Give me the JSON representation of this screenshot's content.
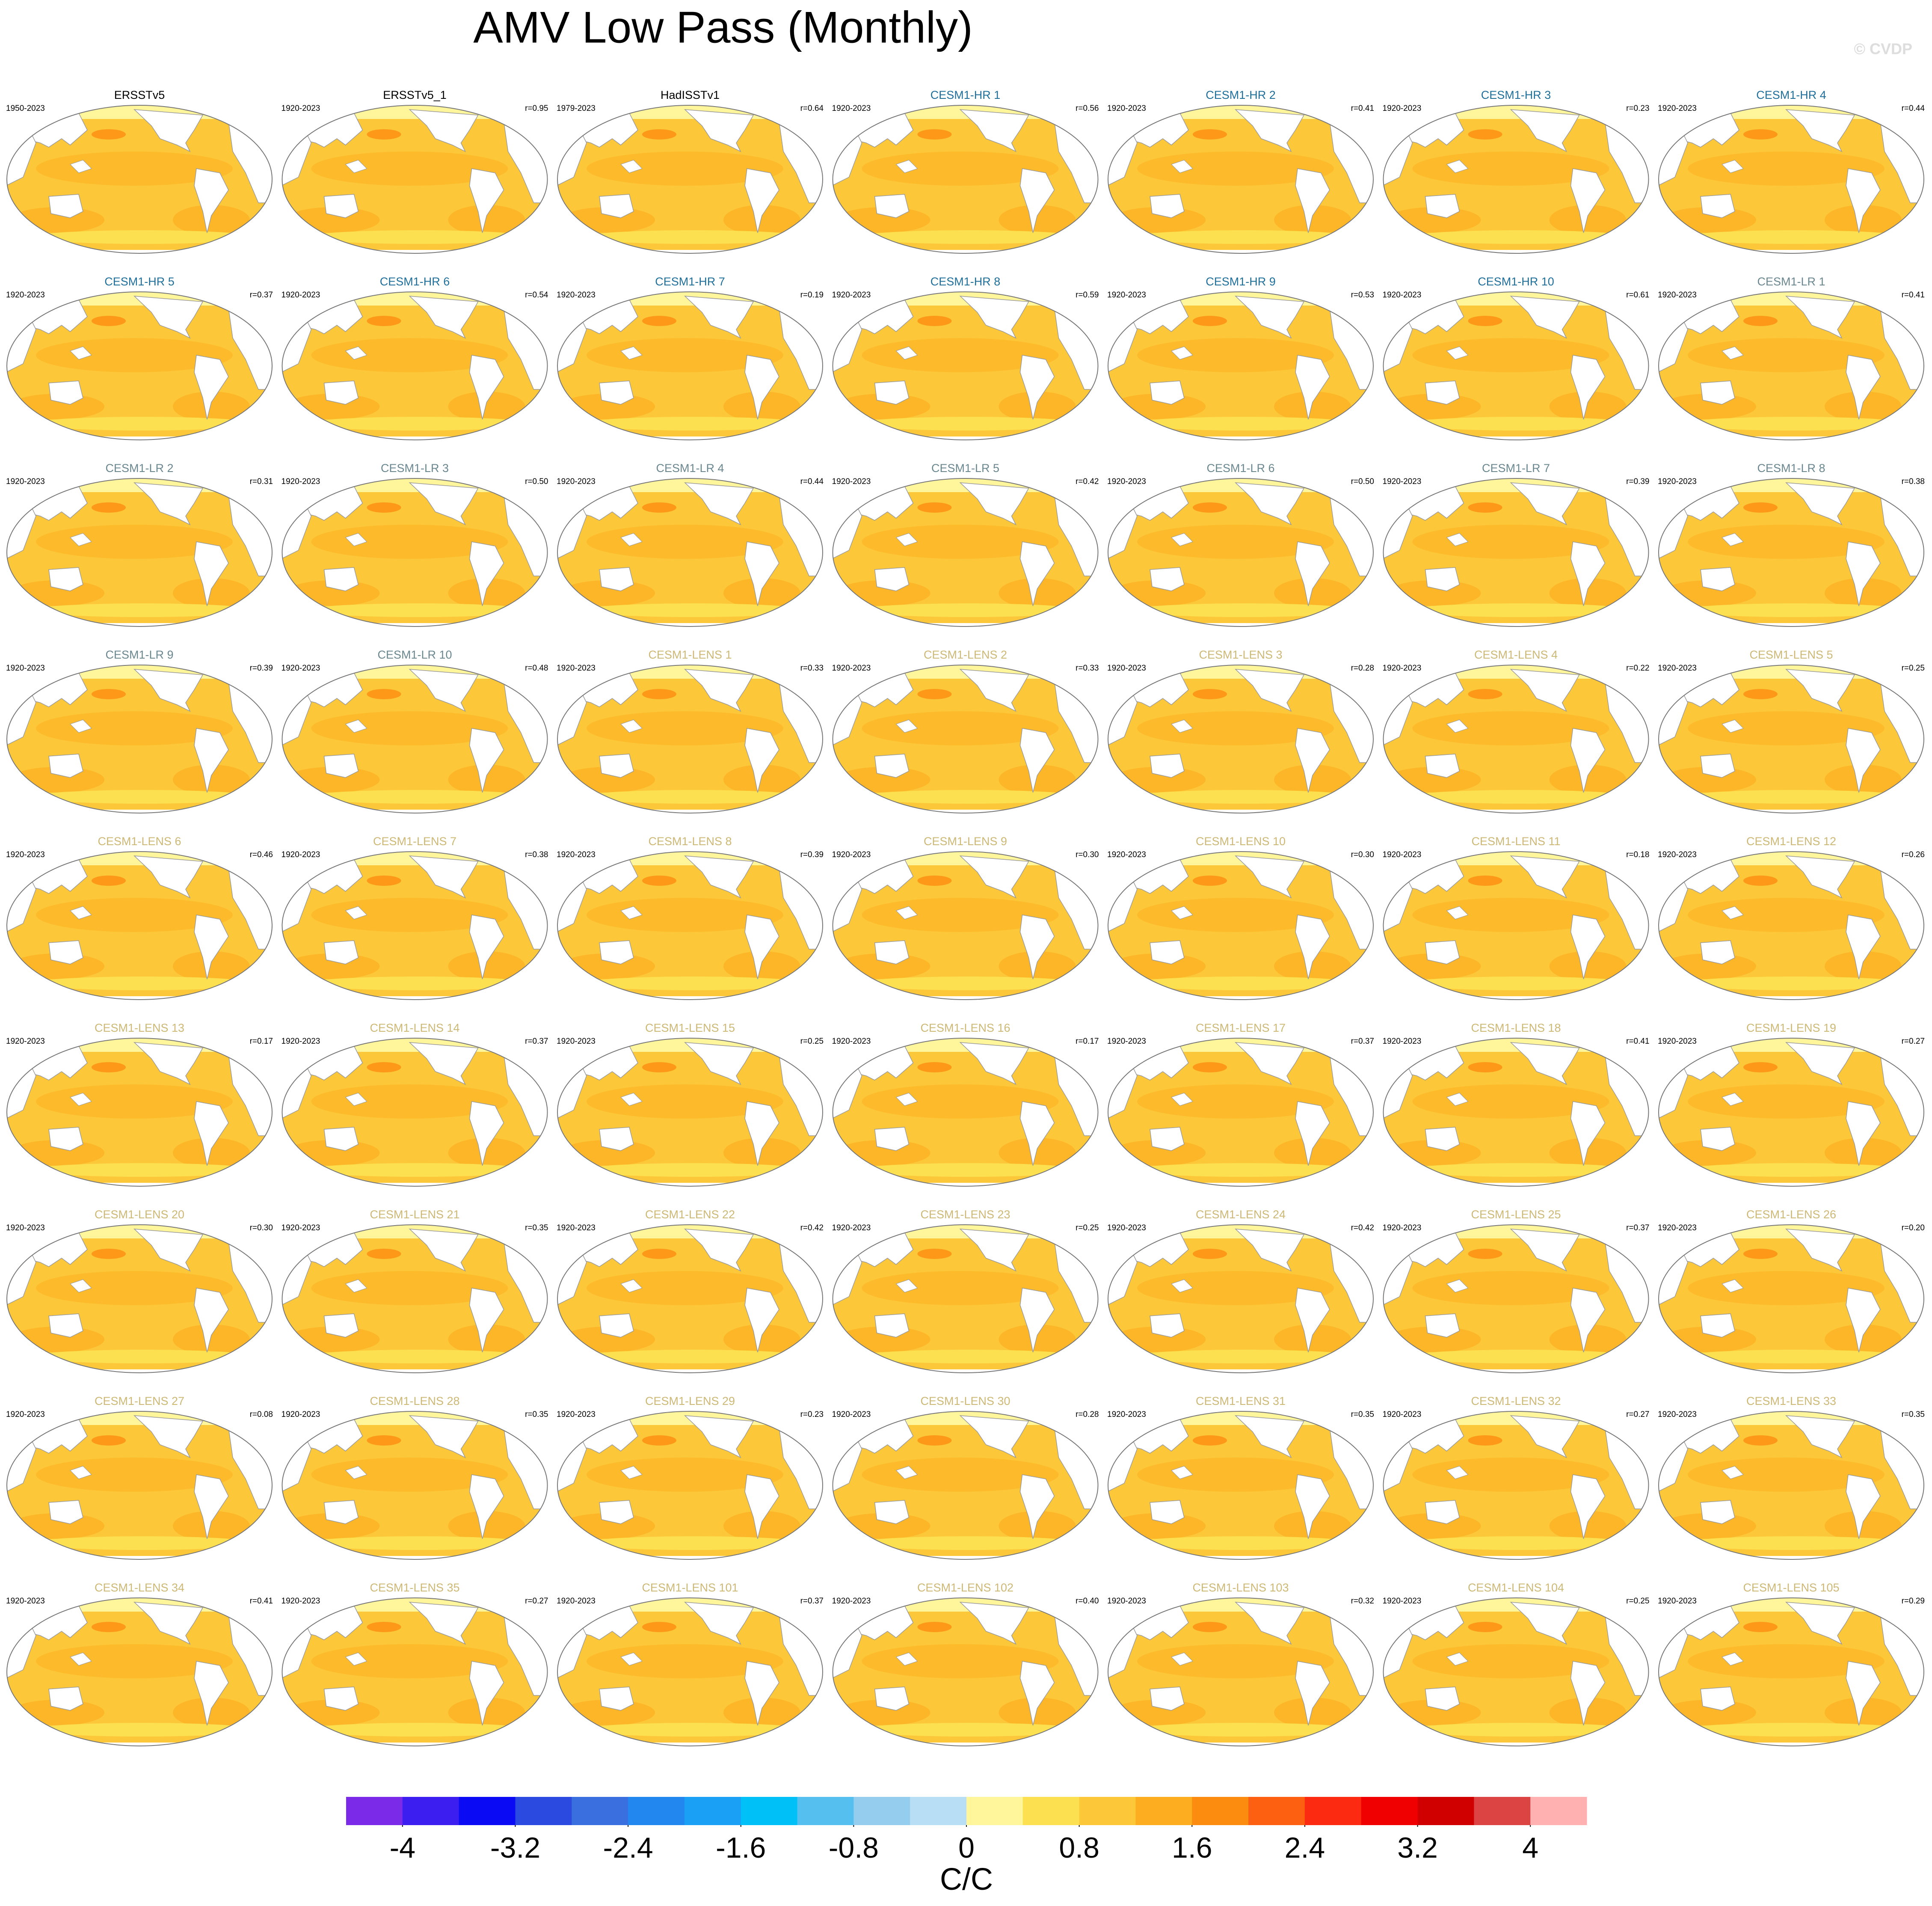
{
  "title": "AMV Low Pass (Monthly)",
  "watermark": "© CVDP",
  "panels": [
    {
      "title": "ERSSTv5",
      "years": "1950-2023",
      "color": "#000000"
    },
    {
      "title": "ERSSTv5_1",
      "years": "1920-2023",
      "r": "r=0.95",
      "color": "#000000"
    },
    {
      "title": "HadISSTv1",
      "years": "1979-2023",
      "r": "r=0.64",
      "color": "#000000"
    },
    {
      "title": "CESM1-HR 1",
      "years": "1920-2023",
      "r": "r=0.56",
      "color": "#1f6f9a"
    },
    {
      "title": "CESM1-HR 2",
      "years": "1920-2023",
      "r": "r=0.41",
      "color": "#1f6f9a"
    },
    {
      "title": "CESM1-HR 3",
      "years": "1920-2023",
      "r": "r=0.23",
      "color": "#1f6f9a"
    },
    {
      "title": "CESM1-HR 4",
      "years": "1920-2023",
      "r": "r=0.44",
      "color": "#1f6f9a"
    },
    {
      "title": "CESM1-HR 5",
      "years": "1920-2023",
      "r": "r=0.37",
      "color": "#1f6f9a"
    },
    {
      "title": "CESM1-HR 6",
      "years": "1920-2023",
      "r": "r=0.54",
      "color": "#1f6f9a"
    },
    {
      "title": "CESM1-HR 7",
      "years": "1920-2023",
      "r": "r=0.19",
      "color": "#1f6f9a"
    },
    {
      "title": "CESM1-HR 8",
      "years": "1920-2023",
      "r": "r=0.59",
      "color": "#1f6f9a"
    },
    {
      "title": "CESM1-HR 9",
      "years": "1920-2023",
      "r": "r=0.53",
      "color": "#1f6f9a"
    },
    {
      "title": "CESM1-HR 10",
      "years": "1920-2023",
      "r": "r=0.61",
      "color": "#1f6f9a"
    },
    {
      "title": "CESM1-LR 1",
      "years": "1920-2023",
      "r": "r=0.41",
      "color": "#6a8790"
    },
    {
      "title": "CESM1-LR 2",
      "years": "1920-2023",
      "r": "r=0.31",
      "color": "#6a8790"
    },
    {
      "title": "CESM1-LR 3",
      "years": "1920-2023",
      "r": "r=0.50",
      "color": "#6a8790"
    },
    {
      "title": "CESM1-LR 4",
      "years": "1920-2023",
      "r": "r=0.44",
      "color": "#6a8790"
    },
    {
      "title": "CESM1-LR 5",
      "years": "1920-2023",
      "r": "r=0.42",
      "color": "#6a8790"
    },
    {
      "title": "CESM1-LR 6",
      "years": "1920-2023",
      "r": "r=0.50",
      "color": "#6a8790"
    },
    {
      "title": "CESM1-LR 7",
      "years": "1920-2023",
      "r": "r=0.39",
      "color": "#6a8790"
    },
    {
      "title": "CESM1-LR 8",
      "years": "1920-2023",
      "r": "r=0.38",
      "color": "#6a8790"
    },
    {
      "title": "CESM1-LR 9",
      "years": "1920-2023",
      "r": "r=0.39",
      "color": "#6a8790"
    },
    {
      "title": "CESM1-LR 10",
      "years": "1920-2023",
      "r": "r=0.48",
      "color": "#6a8790"
    },
    {
      "title": "CESM1-LENS 1",
      "years": "1920-2023",
      "r": "r=0.33",
      "color": "#cdb876"
    },
    {
      "title": "CESM1-LENS 2",
      "years": "1920-2023",
      "r": "r=0.33",
      "color": "#cdb876"
    },
    {
      "title": "CESM1-LENS 3",
      "years": "1920-2023",
      "r": "r=0.28",
      "color": "#cdb876"
    },
    {
      "title": "CESM1-LENS 4",
      "years": "1920-2023",
      "r": "r=0.22",
      "color": "#cdb876"
    },
    {
      "title": "CESM1-LENS 5",
      "years": "1920-2023",
      "r": "r=0.25",
      "color": "#cdb876"
    },
    {
      "title": "CESM1-LENS 6",
      "years": "1920-2023",
      "r": "r=0.46",
      "color": "#cdb876"
    },
    {
      "title": "CESM1-LENS 7",
      "years": "1920-2023",
      "r": "r=0.38",
      "color": "#cdb876"
    },
    {
      "title": "CESM1-LENS 8",
      "years": "1920-2023",
      "r": "r=0.39",
      "color": "#cdb876"
    },
    {
      "title": "CESM1-LENS 9",
      "years": "1920-2023",
      "r": "r=0.30",
      "color": "#cdb876"
    },
    {
      "title": "CESM1-LENS 10",
      "years": "1920-2023",
      "r": "r=0.30",
      "color": "#cdb876"
    },
    {
      "title": "CESM1-LENS 11",
      "years": "1920-2023",
      "r": "r=0.18",
      "color": "#cdb876"
    },
    {
      "title": "CESM1-LENS 12",
      "years": "1920-2023",
      "r": "r=0.26",
      "color": "#cdb876"
    },
    {
      "title": "CESM1-LENS 13",
      "years": "1920-2023",
      "r": "r=0.17",
      "color": "#cdb876"
    },
    {
      "title": "CESM1-LENS 14",
      "years": "1920-2023",
      "r": "r=0.37",
      "color": "#cdb876"
    },
    {
      "title": "CESM1-LENS 15",
      "years": "1920-2023",
      "r": "r=0.25",
      "color": "#cdb876"
    },
    {
      "title": "CESM1-LENS 16",
      "years": "1920-2023",
      "r": "r=0.17",
      "color": "#cdb876"
    },
    {
      "title": "CESM1-LENS 17",
      "years": "1920-2023",
      "r": "r=0.37",
      "color": "#cdb876"
    },
    {
      "title": "CESM1-LENS 18",
      "years": "1920-2023",
      "r": "r=0.41",
      "color": "#cdb876"
    },
    {
      "title": "CESM1-LENS 19",
      "years": "1920-2023",
      "r": "r=0.27",
      "color": "#cdb876"
    },
    {
      "title": "CESM1-LENS 20",
      "years": "1920-2023",
      "r": "r=0.30",
      "color": "#cdb876"
    },
    {
      "title": "CESM1-LENS 21",
      "years": "1920-2023",
      "r": "r=0.35",
      "color": "#cdb876"
    },
    {
      "title": "CESM1-LENS 22",
      "years": "1920-2023",
      "r": "r=0.42",
      "color": "#cdb876"
    },
    {
      "title": "CESM1-LENS 23",
      "years": "1920-2023",
      "r": "r=0.25",
      "color": "#cdb876"
    },
    {
      "title": "CESM1-LENS 24",
      "years": "1920-2023",
      "r": "r=0.42",
      "color": "#cdb876"
    },
    {
      "title": "CESM1-LENS 25",
      "years": "1920-2023",
      "r": "r=0.37",
      "color": "#cdb876"
    },
    {
      "title": "CESM1-LENS 26",
      "years": "1920-2023",
      "r": "r=0.20",
      "color": "#cdb876"
    },
    {
      "title": "CESM1-LENS 27",
      "years": "1920-2023",
      "r": "r=0.08",
      "color": "#cdb876"
    },
    {
      "title": "CESM1-LENS 28",
      "years": "1920-2023",
      "r": "r=0.35",
      "color": "#cdb876"
    },
    {
      "title": "CESM1-LENS 29",
      "years": "1920-2023",
      "r": "r=0.23",
      "color": "#cdb876"
    },
    {
      "title": "CESM1-LENS 30",
      "years": "1920-2023",
      "r": "r=0.28",
      "color": "#cdb876"
    },
    {
      "title": "CESM1-LENS 31",
      "years": "1920-2023",
      "r": "r=0.35",
      "color": "#cdb876"
    },
    {
      "title": "CESM1-LENS 32",
      "years": "1920-2023",
      "r": "r=0.27",
      "color": "#cdb876"
    },
    {
      "title": "CESM1-LENS 33",
      "years": "1920-2023",
      "r": "r=0.35",
      "color": "#cdb876"
    },
    {
      "title": "CESM1-LENS 34",
      "years": "1920-2023",
      "r": "r=0.41",
      "color": "#cdb876"
    },
    {
      "title": "CESM1-LENS 35",
      "years": "1920-2023",
      "r": "r=0.27",
      "color": "#cdb876"
    },
    {
      "title": "CESM1-LENS 101",
      "years": "1920-2023",
      "r": "r=0.37",
      "color": "#cdb876"
    },
    {
      "title": "CESM1-LENS 102",
      "years": "1920-2023",
      "r": "r=0.40",
      "color": "#cdb876"
    },
    {
      "title": "CESM1-LENS 103",
      "years": "1920-2023",
      "r": "r=0.32",
      "color": "#cdb876"
    },
    {
      "title": "CESM1-LENS 104",
      "years": "1920-2023",
      "r": "r=0.25",
      "color": "#cdb876"
    },
    {
      "title": "CESM1-LENS 105",
      "years": "1920-2023",
      "r": "r=0.29",
      "color": "#cdb876"
    }
  ],
  "colorbar": {
    "colors": [
      "#7b2ae8",
      "#3c1ef0",
      "#0a0af5",
      "#2a4ae0",
      "#3a6fe0",
      "#2288f0",
      "#1aa0f5",
      "#00c0f8",
      "#55c0f0",
      "#95cdee",
      "#b8def5",
      "#fff59a",
      "#fde050",
      "#fcc83a",
      "#fcae20",
      "#fc8c10",
      "#fc6010",
      "#fc2a10",
      "#f00000",
      "#d00000",
      "#dc4444",
      "#ffb0b0"
    ],
    "xlim": [
      -4.4,
      4.4
    ],
    "xticks": [
      -4,
      -3.2,
      -2.4,
      -1.6,
      -0.8,
      0,
      0.8,
      1.6,
      2.4,
      3.2,
      4
    ],
    "label": "C/C"
  }
}
